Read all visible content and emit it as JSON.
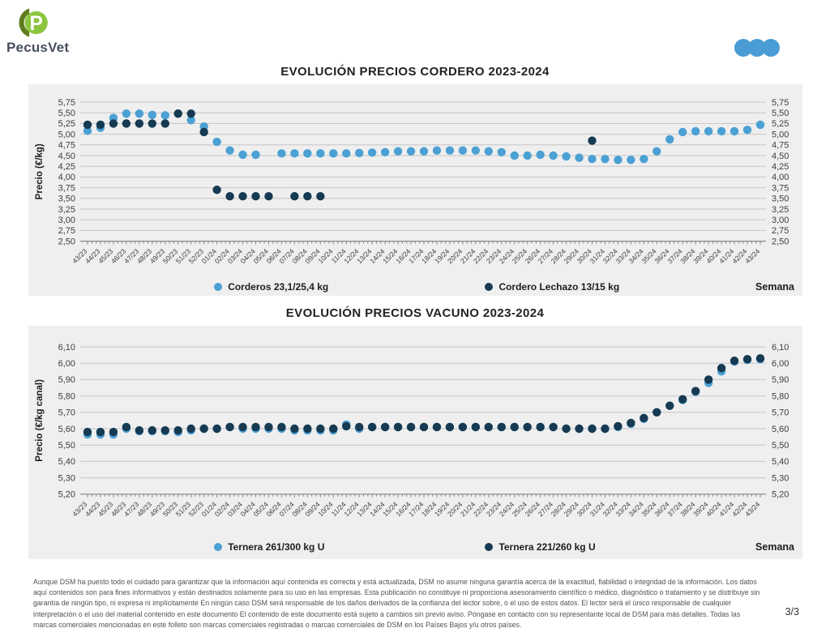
{
  "header": {
    "logo_text": "PecusVet"
  },
  "theme": {
    "brand_blue": "#4A9CD5",
    "light_blue": "#4BA0D4",
    "dark_navy": "#163A52",
    "panel_bg": "#EFEFEF",
    "grid_color": "#C6C6C6",
    "axis_color": "#8A8A8A",
    "tick_text": "#3E3E3E",
    "logo_green_bright": "#8CC63E",
    "logo_green_dark": "#5F7D20",
    "logo_text_color": "#474F5D"
  },
  "chart_data": [
    {
      "type": "scatter",
      "title": "EVOLUCIÓN PRECIOS CORDERO 2023-2024",
      "ylabel": "Precio (€/kg)",
      "xlabel": "Semana",
      "ylim": [
        2.5,
        5.75
      ],
      "ystep": 0.25,
      "ytick_labels": [
        "5,75",
        "5,50",
        "5,25",
        "5,00",
        "4,75",
        "4,50",
        "4,25",
        "4,00",
        "3,75",
        "3,50",
        "3,25",
        "3,00",
        "2,75",
        "2,50"
      ],
      "grid": true,
      "legend_position": "bottom",
      "categories": [
        "43/23",
        "44/23",
        "45/23",
        "46/23",
        "47/23",
        "48/23",
        "49/23",
        "50/23",
        "51/23",
        "52/23",
        "01/24",
        "02/24",
        "03/24",
        "04/24",
        "05/24",
        "06/24",
        "07/24",
        "08/24",
        "09/24",
        "10/24",
        "11/24",
        "12/24",
        "13/24",
        "14/24",
        "15/24",
        "16/24",
        "17/24",
        "18/24",
        "19/24",
        "20/24",
        "21/24",
        "22/24",
        "23/24",
        "24/24",
        "25/24",
        "26/24",
        "27/24",
        "28/24",
        "29/24",
        "30/24",
        "31/24",
        "32/24",
        "33/24",
        "34/24",
        "35/24",
        "36/24",
        "37/24",
        "38/24",
        "39/24",
        "40/24",
        "41/24",
        "42/24",
        "43/24"
      ],
      "series": [
        {
          "name": "Corderos 23,1/25,4 kg",
          "color": "#4BA0D4",
          "values": [
            5.08,
            5.15,
            5.38,
            5.48,
            5.48,
            5.45,
            5.44,
            5.48,
            5.33,
            5.18,
            4.82,
            4.62,
            4.52,
            4.52,
            null,
            4.55,
            4.55,
            4.55,
            4.55,
            4.55,
            4.55,
            4.56,
            4.57,
            4.58,
            4.6,
            4.6,
            4.6,
            4.62,
            4.62,
            4.62,
            4.62,
            4.6,
            4.58,
            4.5,
            4.5,
            4.52,
            4.5,
            4.48,
            4.45,
            4.42,
            4.42,
            4.4,
            4.4,
            4.42,
            4.6,
            4.88,
            5.05,
            5.07,
            5.07,
            5.07,
            5.07,
            5.1,
            5.22
          ]
        },
        {
          "name": "Cordero Lechazo 13/15 kg",
          "color": "#163A52",
          "values": [
            5.22,
            5.22,
            5.25,
            5.25,
            5.25,
            5.25,
            5.25,
            5.48,
            5.48,
            5.05,
            3.7,
            3.55,
            3.55,
            3.55,
            3.55,
            null,
            3.55,
            3.55,
            3.55,
            null,
            null,
            null,
            null,
            null,
            null,
            null,
            null,
            null,
            null,
            null,
            null,
            null,
            null,
            null,
            null,
            null,
            null,
            null,
            null,
            4.85,
            null,
            null,
            null,
            null,
            null,
            null,
            null,
            null,
            null,
            null,
            null,
            null,
            null
          ]
        }
      ]
    },
    {
      "type": "scatter",
      "title": "EVOLUCIÓN PRECIOS VACUNO 2023-2024",
      "ylabel": "Precio (€/kg canal)",
      "xlabel": "Semana",
      "ylim": [
        5.2,
        6.1
      ],
      "ystep": 0.1,
      "ytick_labels": [
        "6,10",
        "6,00",
        "5,90",
        "5,80",
        "5,70",
        "5,60",
        "5,50",
        "5,40",
        "5,30",
        "5,20"
      ],
      "grid": true,
      "legend_position": "bottom",
      "categories": [
        "43/23",
        "44/23",
        "45/23",
        "46/23",
        "47/23",
        "48/23",
        "49/23",
        "50/23",
        "51/23",
        "52/23",
        "01/24",
        "02/24",
        "03/24",
        "04/24",
        "05/24",
        "06/24",
        "07/24",
        "08/24",
        "09/24",
        "10/24",
        "11/24",
        "12/24",
        "13/24",
        "14/24",
        "15/24",
        "16/24",
        "17/24",
        "18/24",
        "19/24",
        "20/24",
        "21/24",
        "22/24",
        "23/24",
        "24/24",
        "25/24",
        "26/24",
        "27/24",
        "28/24",
        "29/24",
        "30/24",
        "31/24",
        "32/24",
        "33/24",
        "34/24",
        "35/24",
        "36/24",
        "37/24",
        "38/24",
        "39/24",
        "40/24",
        "41/24",
        "42/24",
        "43/24"
      ],
      "series": [
        {
          "name": "Ternera 261/300 kg U",
          "color": "#4BA0D4",
          "values": [
            5.565,
            5.565,
            5.565,
            5.6,
            5.585,
            5.585,
            5.585,
            5.58,
            5.59,
            5.6,
            5.6,
            5.61,
            5.6,
            5.6,
            5.6,
            5.6,
            5.59,
            5.59,
            5.59,
            5.59,
            5.625,
            5.6,
            5.61,
            5.61,
            5.61,
            5.61,
            5.61,
            5.61,
            5.61,
            5.61,
            5.61,
            5.61,
            5.61,
            5.61,
            5.61,
            5.61,
            5.61,
            5.6,
            5.6,
            5.6,
            5.6,
            5.61,
            5.63,
            5.66,
            5.7,
            5.74,
            5.775,
            5.825,
            5.88,
            5.95,
            6.01,
            6.02,
            6.025
          ]
        },
        {
          "name": "Ternera 221/260 kg U",
          "color": "#163A52",
          "values": [
            5.58,
            5.58,
            5.58,
            5.61,
            5.59,
            5.59,
            5.59,
            5.59,
            5.6,
            5.6,
            5.6,
            5.61,
            5.61,
            5.61,
            5.61,
            5.61,
            5.6,
            5.6,
            5.6,
            5.6,
            5.615,
            5.61,
            5.61,
            5.61,
            5.61,
            5.61,
            5.61,
            5.61,
            5.61,
            5.61,
            5.61,
            5.61,
            5.61,
            5.61,
            5.61,
            5.61,
            5.61,
            5.6,
            5.6,
            5.6,
            5.6,
            5.615,
            5.635,
            5.665,
            5.7,
            5.74,
            5.78,
            5.83,
            5.9,
            5.97,
            6.015,
            6.025,
            6.03
          ]
        }
      ]
    }
  ],
  "footer": {
    "disclaimer": "Aunque DSM ha puesto todo el cuidado para garantizar que la información aquí contenida es correcta y está actualizada, DSM no asume ninguna garantía acerca de la exactitud, fiabilidad o integridad de la información. Los datos aquí contenidos son para fines informativos y están destinados solamente para su uso en las empresas. Esta publicación no constituye ni proporciona asesoramiento científico o médico, diagnóstico o tratamiento y se distribuye sin garantía de ningún tipo, ni expresa ni implícitamente En ningún caso DSM será responsable de los daños derivados de la confianza del lector sobre, o el uso de estos datos. El lector será el único responsable de cualquier interpretación o el uso del material contenido en este documento El contenido de este documento está sujeto a cambios sin previo aviso. Póngase en contacto con su representante local de DSM para más detalles. Todas las marcas comerciales mencionadas en este folleto son marcas comerciales registradas o marcas comerciales de DSM en los Países Bajos y/u otros países.",
    "page": "3/3"
  }
}
